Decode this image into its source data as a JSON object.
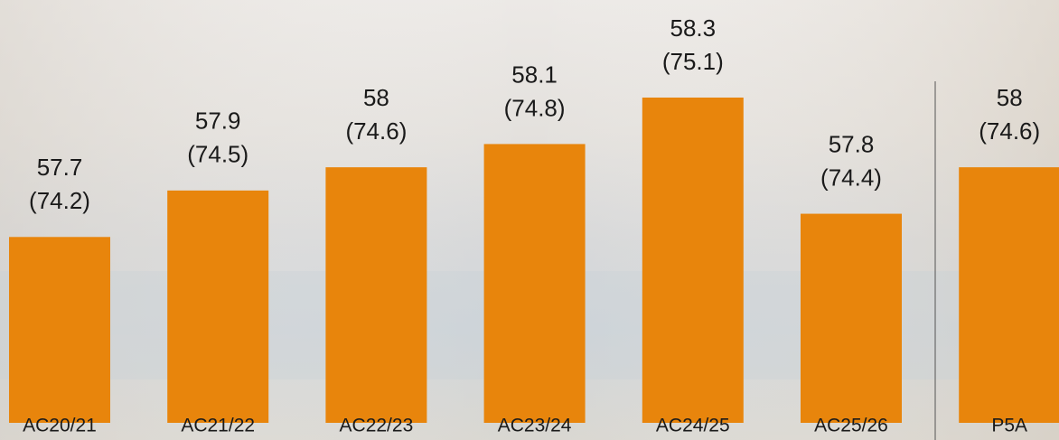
{
  "chart_data": {
    "type": "bar",
    "categories": [
      "AC20/21",
      "AC21/22",
      "AC22/23",
      "AC23/24",
      "AC24/25",
      "AC25/26",
      "P5A"
    ],
    "values": [
      57.7,
      57.9,
      58,
      58.1,
      58.3,
      57.8,
      58
    ],
    "secondary_values": [
      74.2,
      74.5,
      74.6,
      74.8,
      75.1,
      74.4,
      74.6
    ],
    "secondary_value_labels": [
      "(74.2)",
      "(74.5)",
      "(74.6)",
      "(74.8)",
      "(75.1)",
      "(74.4)",
      "(74.6)"
    ],
    "color": "#e8850c",
    "ylim": [
      56.9,
      58.72
    ]
  }
}
